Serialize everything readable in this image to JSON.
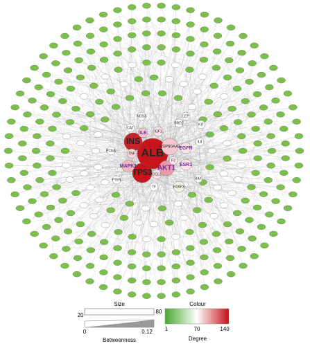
{
  "nodes": [
    {
      "label": "ALB"
    },
    {
      "label": "TP53"
    },
    {
      "label": "INS"
    },
    {
      "label": "AKT1"
    },
    {
      "label": "MAPK1"
    },
    {
      "label": "HSP90AA1"
    },
    {
      "label": "EGFR"
    },
    {
      "label": "ESR1"
    },
    {
      "label": "IL6"
    },
    {
      "label": "TNF"
    },
    {
      "label": "IGF1"
    },
    {
      "label": "CAT"
    },
    {
      "label": "F2"
    },
    {
      "label": "CCL2"
    },
    {
      "label": "PCNA"
    },
    {
      "label": "BRD2"
    },
    {
      "label": "IL8"
    },
    {
      "label": "BAX"
    },
    {
      "label": "H2AFX"
    },
    {
      "label": "PTEN"
    },
    {
      "label": "NOS3"
    },
    {
      "label": "KIT"
    },
    {
      "label": "LEP"
    },
    {
      "label": "TF"
    }
  ],
  "legend": {
    "size_title": "Size",
    "size_min": "20",
    "size_max": "80",
    "betweenness_min": "0",
    "betweenness_max": "0.12",
    "betweenness_label": "Betweenness",
    "colour_title": "Colour",
    "degree_min": "1",
    "degree_mid": "70",
    "degree_max": "140",
    "degree_label": "Degree"
  }
}
